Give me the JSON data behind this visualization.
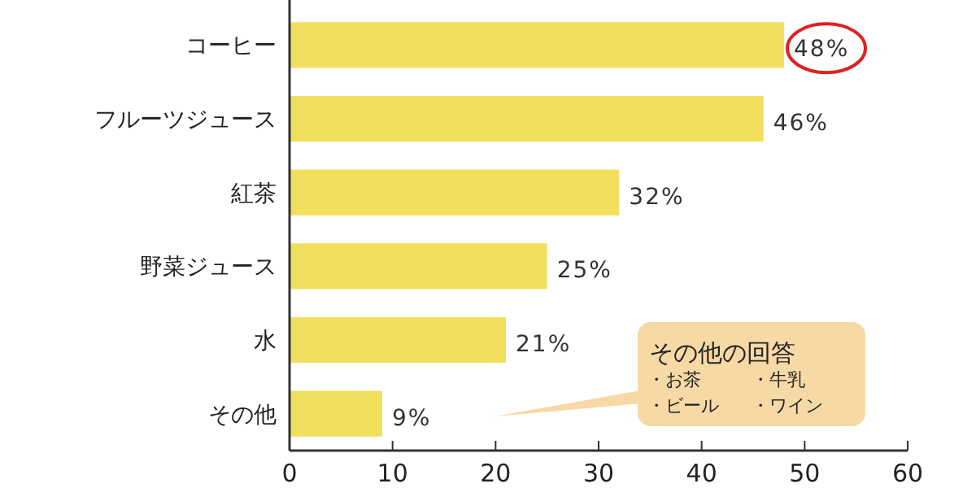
{
  "chart_data": {
    "type": "bar",
    "orientation": "horizontal",
    "categories": [
      "コーヒー",
      "フルーツジュース",
      "紅茶",
      "野菜ジュース",
      "水",
      "その他"
    ],
    "values": [
      48,
      46,
      32,
      25,
      21,
      9
    ],
    "value_labels": [
      "48%",
      "46%",
      "32%",
      "25%",
      "21%",
      "9%"
    ],
    "color": "#f2df5e",
    "xlim": [
      0,
      60
    ],
    "xticks": [
      0,
      10,
      20,
      30,
      40,
      50,
      60
    ],
    "grid": false,
    "annotations": [
      "その他の回答",
      "・お茶",
      "・牛乳",
      "・ビール",
      "・ワイン"
    ]
  }
}
